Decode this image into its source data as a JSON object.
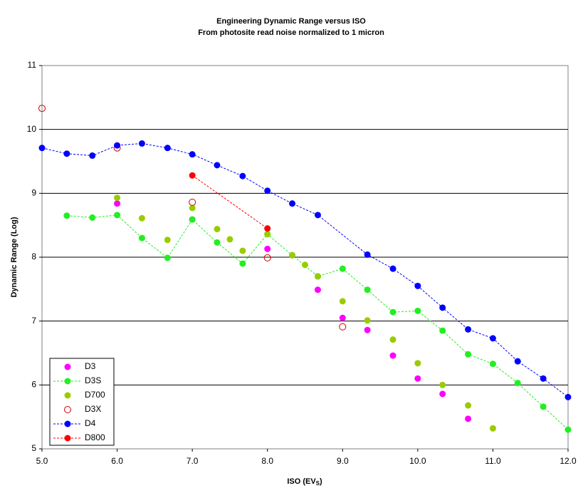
{
  "chart_data": {
    "type": "line",
    "title": "Engineering Dynamic Range versus ISO",
    "subtitle": "From photosite read noise normalized to 1 micron",
    "x_label": {
      "text": "ISO (EV",
      "sub": "S",
      "close": ")"
    },
    "y_label": "Dynamic Range (Log)",
    "xlim": [
      5,
      12
    ],
    "ylim": [
      5,
      11
    ],
    "xticks": [
      {
        "value": 5,
        "label": "5.0"
      },
      {
        "value": 6,
        "label": "6.0"
      },
      {
        "value": 7,
        "label": "7.0"
      },
      {
        "value": 8,
        "label": "8.0"
      },
      {
        "value": 9,
        "label": "9.0"
      },
      {
        "value": 10,
        "label": "10.0"
      },
      {
        "value": 11,
        "label": "11.0"
      },
      {
        "value": 12,
        "label": "12.0"
      }
    ],
    "yticks": [
      5,
      6,
      7,
      8,
      9,
      10,
      11
    ],
    "grid": true,
    "legend": "lower left",
    "series": [
      {
        "name": "D3",
        "color": "#ff00ff",
        "marker": "filled",
        "line": false,
        "x": [
          6,
          7,
          8,
          8.67,
          9,
          9.33,
          9.67,
          10,
          10.33,
          10.67
        ],
        "values": [
          8.84,
          8.59,
          8.13,
          7.49,
          7.05,
          6.86,
          6.46,
          6.1,
          5.86,
          5.47
        ]
      },
      {
        "name": "D3S",
        "color": "#22ee22",
        "marker": "filled",
        "line": true,
        "x": [
          5.33,
          5.67,
          6,
          6.33,
          6.67,
          7,
          7.33,
          7.67,
          8,
          8.33,
          8.67,
          9,
          9.33,
          9.67,
          10,
          10.33,
          10.67,
          11,
          11.33,
          11.67,
          12
        ],
        "values": [
          8.65,
          8.62,
          8.66,
          8.3,
          7.99,
          8.59,
          8.23,
          7.9,
          8.36,
          8.03,
          7.7,
          7.82,
          7.49,
          7.14,
          7.16,
          6.85,
          6.48,
          6.33,
          6.03,
          5.66,
          5.3
        ]
      },
      {
        "name": "D700",
        "color": "#99cc00",
        "marker": "filled",
        "line": false,
        "x": [
          6,
          6.33,
          6.67,
          7,
          7.33,
          7.5,
          7.67,
          8,
          8.33,
          8.5,
          8.67,
          9,
          9.33,
          9.67,
          10,
          10.33,
          10.67,
          11
        ],
        "values": [
          8.93,
          8.61,
          8.27,
          8.77,
          8.44,
          8.28,
          8.1,
          8.36,
          8.03,
          7.88,
          7.7,
          7.31,
          7.01,
          6.71,
          6.34,
          6.0,
          5.68,
          5.32
        ]
      },
      {
        "name": "D3X",
        "color": "#cc0000",
        "marker": "open",
        "line": false,
        "x": [
          5,
          6,
          7,
          8,
          9
        ],
        "values": [
          10.33,
          9.71,
          8.86,
          7.99,
          6.91
        ]
      },
      {
        "name": "D4",
        "color": "#0000ff",
        "marker": "filled",
        "line": true,
        "x": [
          5,
          5.33,
          5.67,
          6,
          6.33,
          6.67,
          7,
          7.33,
          7.67,
          8,
          8.33,
          8.67,
          9.33,
          9.67,
          10,
          10.33,
          10.67,
          11,
          11.33,
          11.67,
          12
        ],
        "values": [
          9.71,
          9.62,
          9.59,
          9.75,
          9.78,
          9.71,
          9.61,
          9.44,
          9.27,
          9.04,
          8.84,
          8.66,
          8.04,
          7.82,
          7.55,
          7.21,
          6.87,
          6.73,
          6.37,
          6.1,
          5.81
        ]
      },
      {
        "name": "D800",
        "color": "#ff0000",
        "marker": "filled",
        "line": true,
        "x": [
          7,
          8
        ],
        "values": [
          9.28,
          8.45
        ]
      }
    ]
  }
}
